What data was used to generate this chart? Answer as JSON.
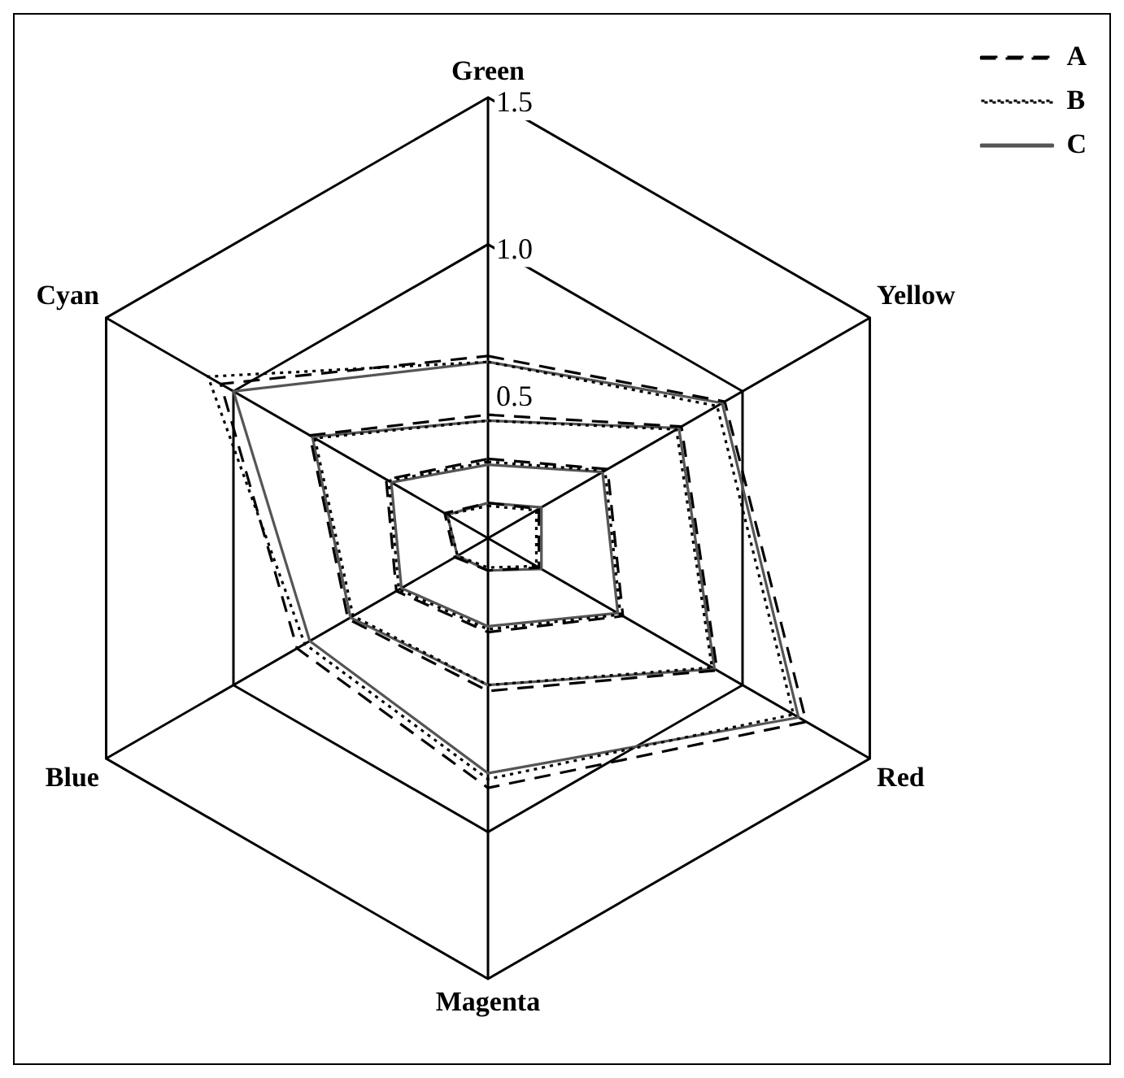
{
  "chart_data": {
    "type": "radar",
    "categories": [
      "Green",
      "Yellow",
      "Red",
      "Magenta",
      "Blue",
      "Cyan"
    ],
    "series": [
      {
        "name": "A",
        "color": "#000000",
        "line_style": "dashed",
        "values": [
          0.62,
          0.93,
          1.25,
          0.85,
          0.75,
          1.05
        ]
      },
      {
        "name": "B",
        "color": "#000000",
        "line_style": "dotted",
        "values": [
          0.6,
          0.9,
          1.2,
          0.82,
          0.72,
          1.1
        ]
      },
      {
        "name": "C",
        "color": "#555555",
        "line_style": "solid",
        "values": [
          0.6,
          0.92,
          1.22,
          0.8,
          0.7,
          1.0
        ]
      },
      {
        "color": "#000000",
        "line_style": "dashed",
        "values": [
          0.42,
          0.76,
          0.9,
          0.52,
          0.55,
          0.7
        ]
      },
      {
        "color": "#000000",
        "line_style": "dotted",
        "values": [
          0.4,
          0.74,
          0.88,
          0.5,
          0.53,
          0.68
        ]
      },
      {
        "color": "#555555",
        "line_style": "solid",
        "values": [
          0.4,
          0.75,
          0.89,
          0.5,
          0.54,
          0.69
        ]
      },
      {
        "color": "#000000",
        "line_style": "dashed",
        "values": [
          0.27,
          0.47,
          0.53,
          0.32,
          0.36,
          0.4
        ]
      },
      {
        "color": "#000000",
        "line_style": "dotted",
        "values": [
          0.26,
          0.46,
          0.52,
          0.31,
          0.35,
          0.39
        ]
      },
      {
        "color": "#555555",
        "line_style": "solid",
        "values": [
          0.25,
          0.45,
          0.51,
          0.3,
          0.34,
          0.38
        ]
      },
      {
        "color": "#000000",
        "line_style": "dashed",
        "values": [
          0.12,
          0.2,
          0.2,
          0.11,
          0.13,
          0.17
        ]
      },
      {
        "color": "#000000",
        "line_style": "dotted",
        "values": [
          0.11,
          0.19,
          0.19,
          0.1,
          0.12,
          0.16
        ]
      },
      {
        "color": "#555555",
        "line_style": "solid",
        "values": [
          0.12,
          0.21,
          0.21,
          0.11,
          0.12,
          0.16
        ]
      }
    ],
    "ylim": [
      0,
      1.5
    ],
    "yticks": [
      0.5,
      {
        "value": 1,
        "label": "1.0"
      },
      1.5
    ],
    "grid": true,
    "legend": "top right",
    "marker": "none"
  }
}
